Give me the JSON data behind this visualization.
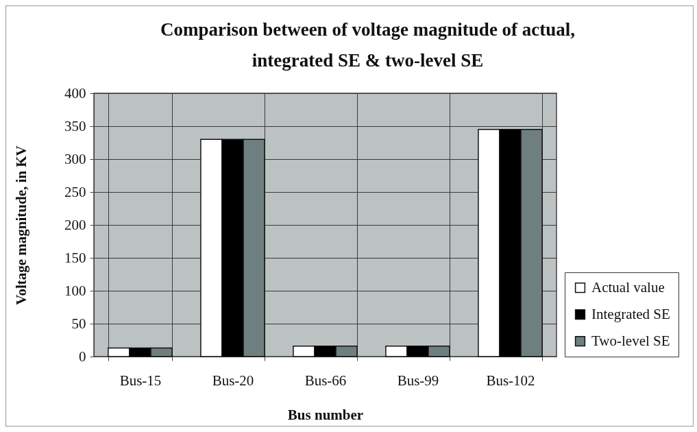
{
  "chart_data": {
    "type": "bar",
    "title": "Comparison between of voltage magnitude of actual, integrated SE & two-level SE",
    "xlabel": "Bus number",
    "ylabel": "Voltage magnitude, in KV",
    "categories": [
      "Bus-15",
      "Bus-20",
      "Bus-66",
      "Bus-99",
      "Bus-102"
    ],
    "series": [
      {
        "name": "Actual value",
        "color": "#ffffff",
        "values": [
          13,
          330,
          16,
          16,
          345
        ]
      },
      {
        "name": "Integrated SE",
        "color": "#000000",
        "values": [
          13,
          330,
          16,
          16,
          345
        ]
      },
      {
        "name": "Two-level SE",
        "color": "#6f7f7f",
        "values": [
          13,
          330,
          16,
          16,
          345
        ]
      }
    ],
    "ylim": [
      0,
      400
    ],
    "yticks": [
      0,
      50,
      100,
      150,
      200,
      250,
      300,
      350,
      400
    ],
    "grid": true,
    "legend": "right"
  }
}
